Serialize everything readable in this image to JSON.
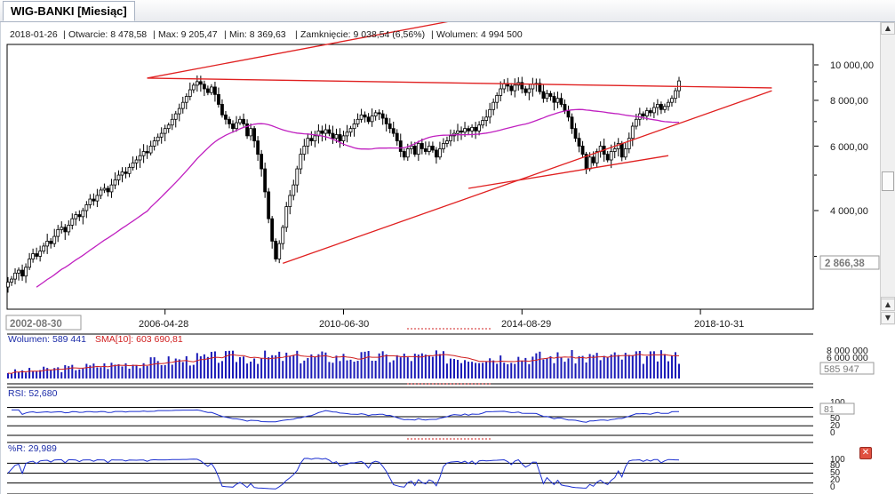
{
  "tab": {
    "label": "WIG-BANKI [Miesiąc]"
  },
  "info_bar": {
    "date": "2018-01-26",
    "open": "Otwarcie: 8 478,58",
    "max": "Max: 9 205,47",
    "min": "Min: 8 369,63",
    "close": "Zamknięcie: 9 038,54 (6,56%)",
    "volume": "Wolumen: 4 994 500"
  },
  "main_panel": {
    "last_value_label": "2 866,38",
    "cursor_date": "2002-08-30",
    "y_ticks": [
      "10 000,00",
      "8 000,00",
      "6 000,00",
      "4 000,00"
    ],
    "x_ticks": [
      "2006-04-28",
      "2010-06-30",
      "2014-08-29",
      "2018-10-31"
    ]
  },
  "volume_panel": {
    "label": "Wolumen: 589 441",
    "sma_label": "SMA[10]: 603 690,81",
    "y_ticks": [
      "8 000 000",
      "6 000 000"
    ],
    "value_label": "585 947"
  },
  "rsi_panel": {
    "label": "RSI: 52,680",
    "value_label": "81",
    "y_ticks": [
      "100",
      "50",
      "20",
      "0"
    ]
  },
  "wr_panel": {
    "label": "%R: 29,989",
    "y_ticks": [
      "100",
      "80",
      "50",
      "20",
      "0"
    ]
  },
  "colors": {
    "candle_bull": "#ffffff",
    "candle_bear": "#000000",
    "sma": "#c020c0",
    "trendline": "#e02020",
    "volume_bar": "#1a1ab8",
    "indicator_line": "#1a2ed0",
    "text_blue": "#1c2ca8",
    "text_red": "#d02020"
  },
  "chart_data": {
    "type": "candlestick",
    "title": "WIG-BANKI [Miesiąc]",
    "x_axis": {
      "type": "date",
      "ticks": [
        "2006-04-28",
        "2010-06-30",
        "2014-08-29",
        "2018-10-31"
      ]
    },
    "y_axis": {
      "scale": "log",
      "ticks": [
        4000,
        6000,
        8000,
        10000
      ]
    },
    "series": [
      {
        "name": "WIG-BANKI",
        "type": "candlestick",
        "closes": [
          2550,
          2600,
          2700,
          2750,
          2650,
          2800,
          2950,
          3050,
          3000,
          3100,
          3200,
          3300,
          3250,
          3400,
          3550,
          3600,
          3500,
          3650,
          3800,
          3900,
          3850,
          4000,
          4150,
          4300,
          4250,
          4400,
          4550,
          4600,
          4500,
          4700,
          4850,
          5000,
          5100,
          5050,
          5250,
          5400,
          5500,
          5650,
          5800,
          5750,
          6000,
          6200,
          6350,
          6500,
          6700,
          6850,
          7100,
          7350,
          7600,
          7900,
          8200,
          8550,
          8800,
          9000,
          8850,
          8600,
          8400,
          8700,
          8300,
          7800,
          7300,
          7100,
          6900,
          6700,
          6950,
          7100,
          6900,
          6400,
          6700,
          6200,
          5700,
          5200,
          4500,
          3800,
          3300,
          2950,
          3250,
          3600,
          4100,
          4400,
          4700,
          5200,
          5700,
          6000,
          6300,
          6200,
          6400,
          6600,
          6500,
          6650,
          6500,
          6300,
          6450,
          6200,
          6400,
          6550,
          6700,
          6900,
          7100,
          7300,
          7200,
          7000,
          7250,
          7400,
          7350,
          7150,
          6900,
          6700,
          6500,
          6200,
          5800,
          5600,
          5900,
          6000,
          5700,
          6100,
          5900,
          5800,
          6000,
          5850,
          5600,
          5900,
          6100,
          6200,
          6400,
          6500,
          6600,
          6550,
          6700,
          6600,
          6750,
          6600,
          6850,
          7050,
          7200,
          7550,
          7900,
          8250,
          8600,
          8900,
          8750,
          8500,
          8800,
          8950,
          8600,
          8400,
          8600,
          8850,
          8900,
          8450,
          8100,
          8350,
          8200,
          7900,
          8100,
          7800,
          7500,
          7200,
          6700,
          6300,
          6000,
          5700,
          5200,
          5600,
          5400,
          5800,
          6000,
          5700,
          5500,
          5800,
          5900,
          6100,
          5600,
          5900,
          6300,
          6800,
          7100,
          7350,
          7250,
          7500,
          7400,
          7650,
          7800,
          7550,
          7700,
          7900,
          8100,
          8500,
          9038.54
        ]
      },
      {
        "name": "",
        "type": "line",
        "description": "long moving average (purple)"
      }
    ],
    "trendlines": [
      {
        "from": [
          "2005-11",
          9200
        ],
        "to": [
          "2020-06",
          8650
        ]
      },
      {
        "from": [
          "2005-11",
          9200
        ],
        "to": [
          "2013-06",
          13500
        ]
      },
      {
        "from": [
          "2009-01",
          2870
        ],
        "to": [
          "2020-06",
          8500
        ]
      },
      {
        "from": [
          "2013-05",
          4600
        ],
        "to": [
          "2018-01",
          5650
        ]
      }
    ],
    "volume_sma_period": 10,
    "rsi_last": 52.68,
    "williams_r_last": 29.989
  }
}
